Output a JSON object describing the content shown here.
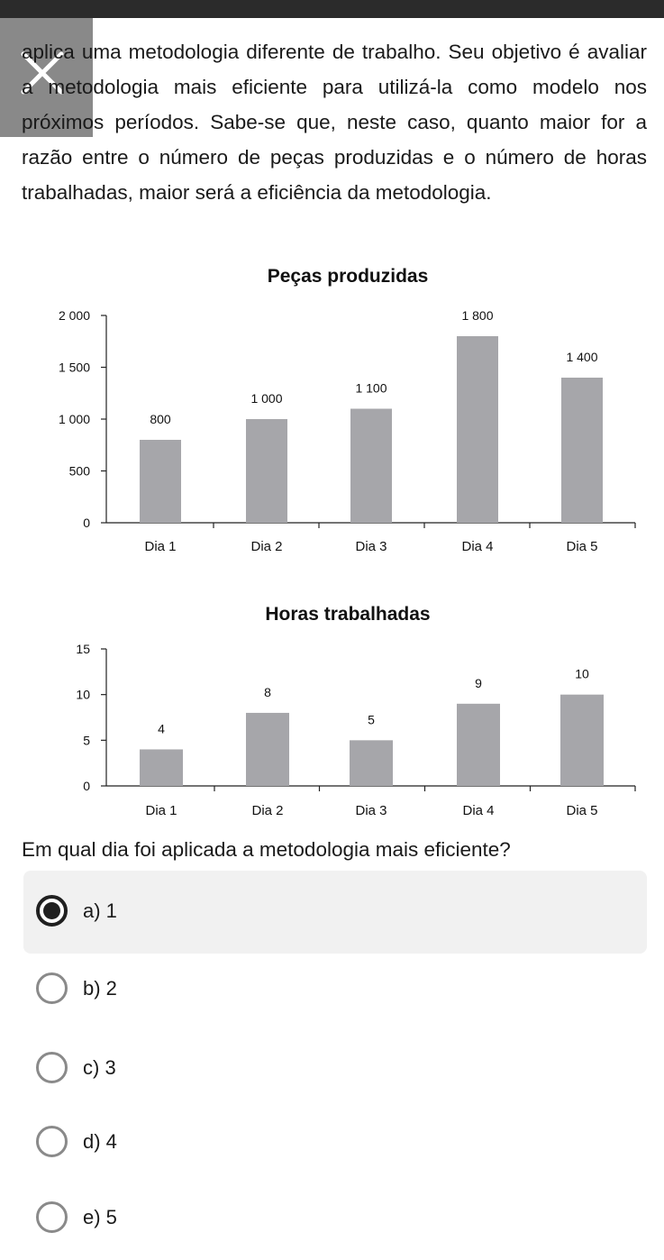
{
  "question": {
    "paragraph": "aplica uma metodologia diferente de trabalho. Seu objetivo é avaliar a metodologia mais eficiente para utilizá-la como modelo nos próximos períodos. Sabe-se que, neste caso, quanto maior for a razão entre o número de peças produzidas e o número de horas trabalhadas, maior será a eficiência da metodologia."
  },
  "chart_data": [
    {
      "type": "bar",
      "title": "Peças produzidas",
      "categories": [
        "Dia 1",
        "Dia 2",
        "Dia 3",
        "Dia 4",
        "Dia 5"
      ],
      "values": [
        800,
        1000,
        1100,
        1800,
        1400
      ],
      "value_labels": [
        "800",
        "1 000",
        "1 100",
        "1 800",
        "1 400"
      ],
      "yticks": [
        0,
        500,
        1000,
        1500,
        2000
      ],
      "ytick_labels": [
        "0",
        "500",
        "1 000",
        "1 500",
        "2 000"
      ],
      "ylim": [
        0,
        2000
      ],
      "grid": false,
      "bar_color": "#a6a6aa"
    },
    {
      "type": "bar",
      "title": "Horas trabalhadas",
      "categories": [
        "Dia 1",
        "Dia 2",
        "Dia 3",
        "Dia 4",
        "Dia 5"
      ],
      "values": [
        4,
        8,
        5,
        9,
        10
      ],
      "value_labels": [
        "4",
        "8",
        "5",
        "9",
        "10"
      ],
      "yticks": [
        0,
        5,
        10,
        15
      ],
      "ytick_labels": [
        "0",
        "5",
        "10",
        "15"
      ],
      "ylim": [
        0,
        15
      ],
      "grid": false,
      "bar_color": "#a6a6aa"
    }
  ],
  "prompt": "Em qual dia foi aplicada a metodologia mais eficiente?",
  "options": [
    {
      "label": "a) 1",
      "selected": true
    },
    {
      "label": "b) 2",
      "selected": false
    },
    {
      "label": "c) 3",
      "selected": false
    },
    {
      "label": "d) 4",
      "selected": false
    },
    {
      "label": "e) 5",
      "selected": false
    }
  ],
  "icons": {
    "close": "close-icon",
    "radio": "radio-icon"
  },
  "colors": {
    "selected_bg": "#f1f1f1",
    "radio_checked": "#202020",
    "radio_unchecked": "#8a8a8a"
  }
}
